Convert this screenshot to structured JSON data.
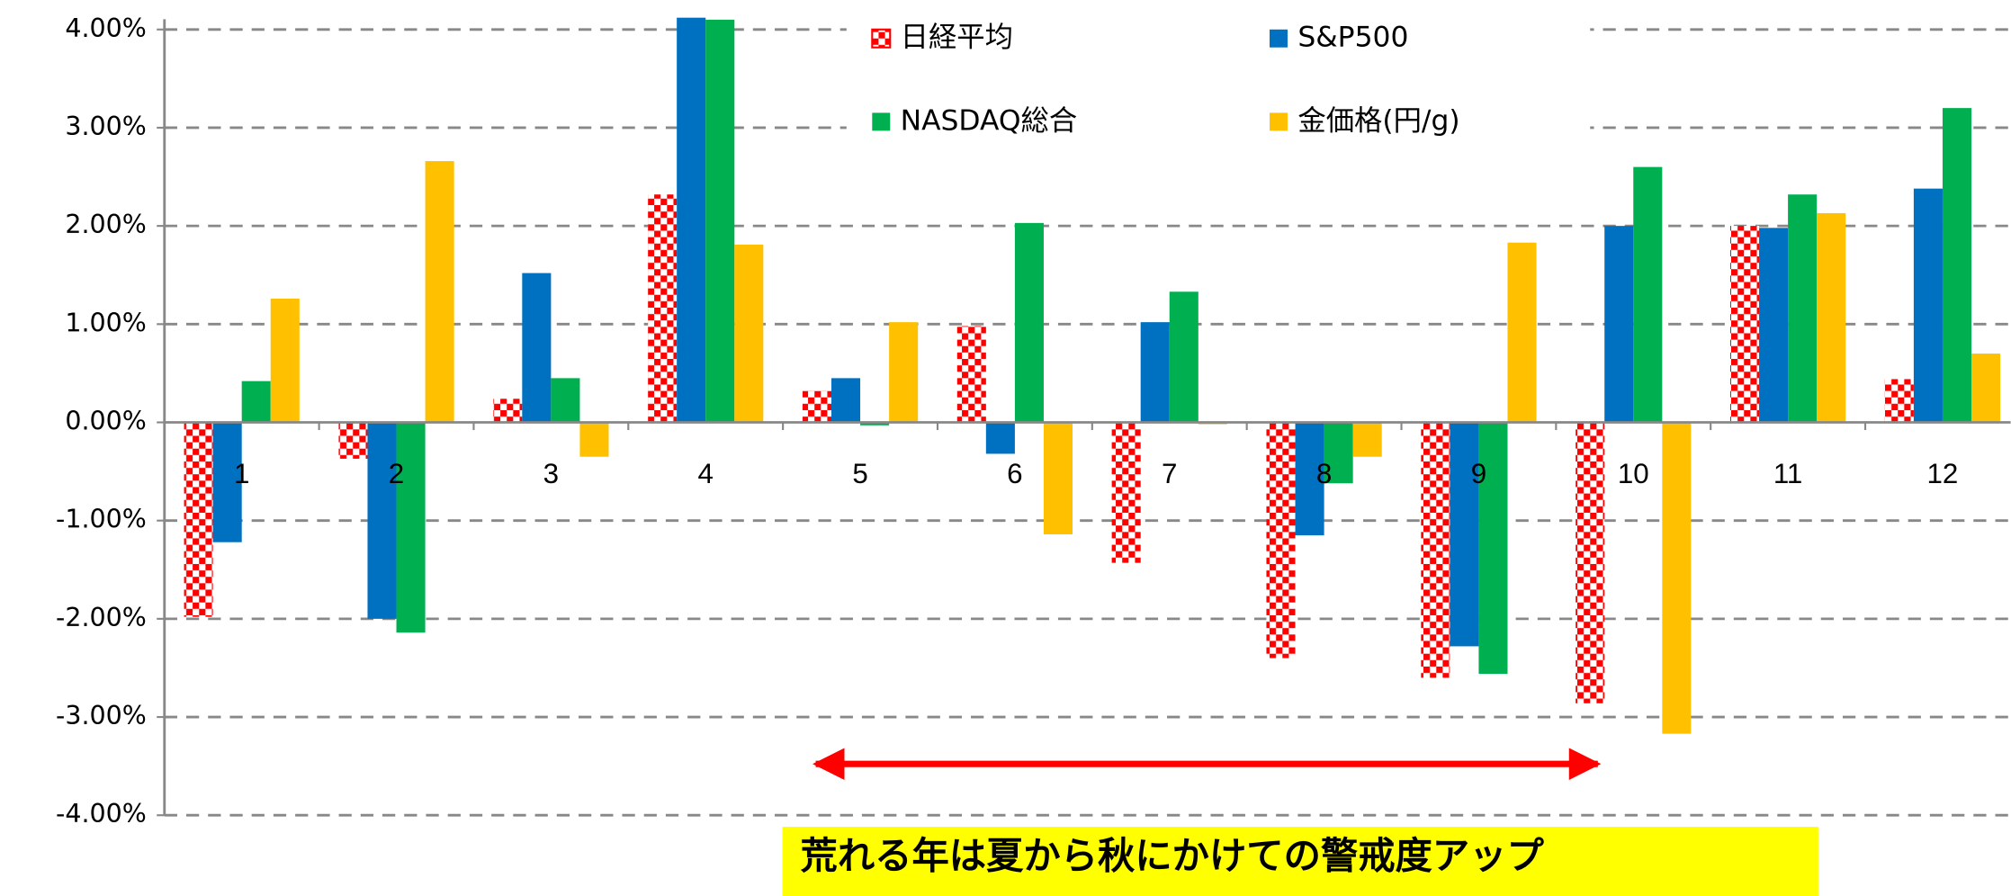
{
  "chart_data": {
    "type": "bar",
    "categories": [
      "1",
      "2",
      "3",
      "4",
      "5",
      "6",
      "7",
      "8",
      "9",
      "10",
      "11",
      "12"
    ],
    "series": [
      {
        "name": "日経平均",
        "color": "#ff0000",
        "pattern": "checkered",
        "values": [
          -1.98,
          -0.37,
          0.24,
          2.32,
          0.32,
          0.98,
          -1.43,
          -2.4,
          -2.6,
          -2.86,
          2.0,
          0.44
        ]
      },
      {
        "name": "S&P500",
        "color": "#0070c0",
        "values": [
          -1.22,
          -2.0,
          1.52,
          4.12,
          0.45,
          -0.32,
          1.02,
          -1.15,
          -2.28,
          2.0,
          1.98,
          2.38
        ]
      },
      {
        "name": "NASDAQ総合",
        "color": "#00b050",
        "values": [
          0.42,
          -2.14,
          0.45,
          4.1,
          -0.03,
          2.03,
          1.33,
          -0.62,
          -2.56,
          2.6,
          2.32,
          3.2
        ]
      },
      {
        "name": "金価格(円/g)",
        "color": "#ffc000",
        "values": [
          1.26,
          2.66,
          -0.35,
          1.81,
          1.02,
          -1.14,
          -0.02,
          -0.35,
          1.83,
          -3.17,
          2.13,
          0.7
        ]
      }
    ],
    "ylim": [
      -4,
      4
    ],
    "yticks": [
      {
        "value": -4,
        "label": "-4.00%"
      },
      {
        "value": -3,
        "label": "-3.00%"
      },
      {
        "value": -2,
        "label": "-2.00%"
      },
      {
        "value": -1,
        "label": "-1.00%"
      },
      {
        "value": 0,
        "label": "0.00%"
      },
      {
        "value": 1,
        "label": "1.00%"
      },
      {
        "value": 2,
        "label": "2.00%"
      },
      {
        "value": 3,
        "label": "3.00%"
      },
      {
        "value": 4,
        "label": "4.00%"
      }
    ],
    "grid": true,
    "legend": "top",
    "annotation": "荒れる年は夏から秋にかけての警戒度アップ"
  }
}
